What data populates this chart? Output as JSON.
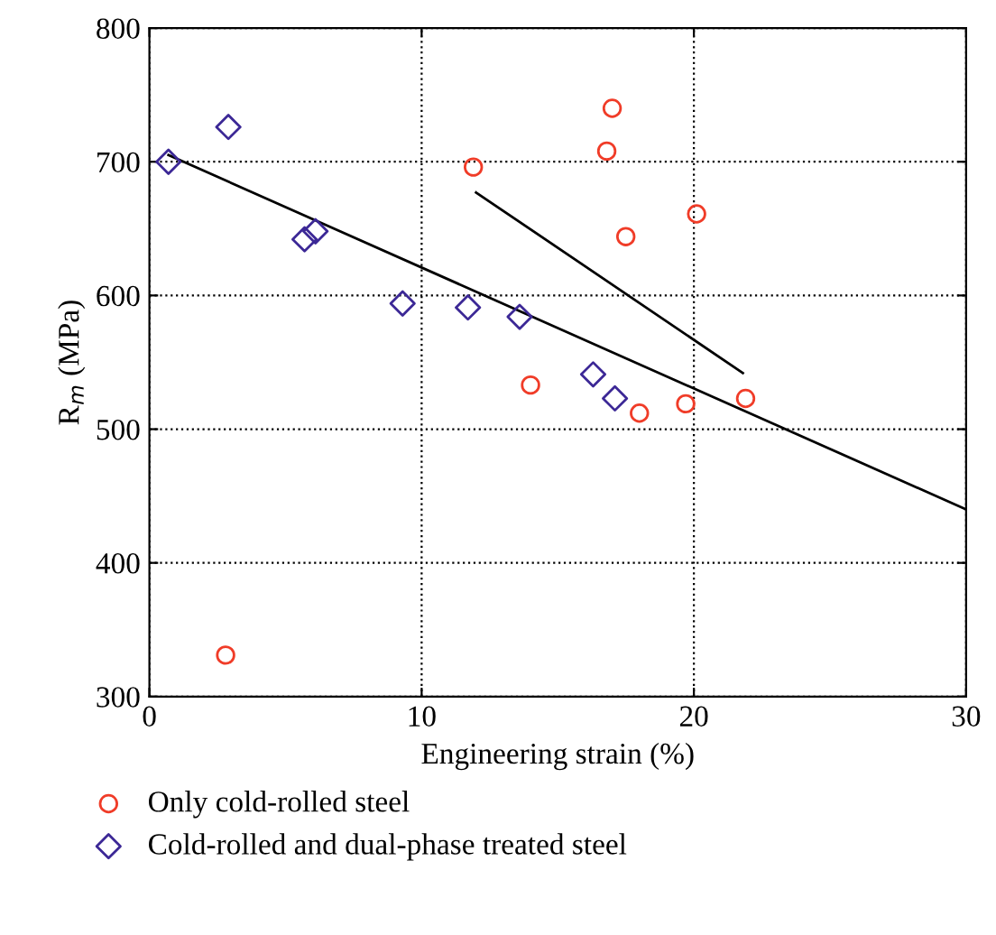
{
  "chart_data": {
    "type": "scatter",
    "xlabel": "Engineering strain (%)",
    "ylabel": "R$_{m}$ (MPa)",
    "xlim": [
      0,
      30
    ],
    "ylim": [
      300,
      800
    ],
    "xticks": [
      0,
      10,
      20,
      30
    ],
    "yticks": [
      300,
      400,
      500,
      600,
      700,
      800
    ],
    "grid": true,
    "legend": "bottom",
    "series": [
      {
        "name": "Only cold-rolled steel",
        "color": "#f03c28",
        "marker": "circle",
        "x": [
          2.8,
          11.9,
          14.0,
          16.8,
          17.0,
          17.5,
          18.0,
          19.7,
          20.1,
          21.9
        ],
        "values": [
          331,
          696,
          533,
          708,
          740,
          644,
          512,
          519,
          661,
          523
        ]
      },
      {
        "name": "Cold-rolled and dual-phase treated steel",
        "color": "#3c2896",
        "marker": "diamond",
        "x": [
          0.7,
          2.9,
          5.7,
          6.1,
          9.3,
          11.7,
          13.6,
          16.3,
          17.1
        ],
        "values": [
          700,
          726,
          642,
          648,
          594,
          591,
          584,
          541,
          523
        ]
      },
      {
        "type": "line",
        "color": "#000000",
        "x": [
          0.7,
          30
        ],
        "values": [
          705,
          440
        ]
      },
      {
        "type": "line",
        "color": "#000000",
        "x": [
          12.0,
          21.8
        ],
        "values": [
          677,
          542
        ]
      }
    ]
  }
}
